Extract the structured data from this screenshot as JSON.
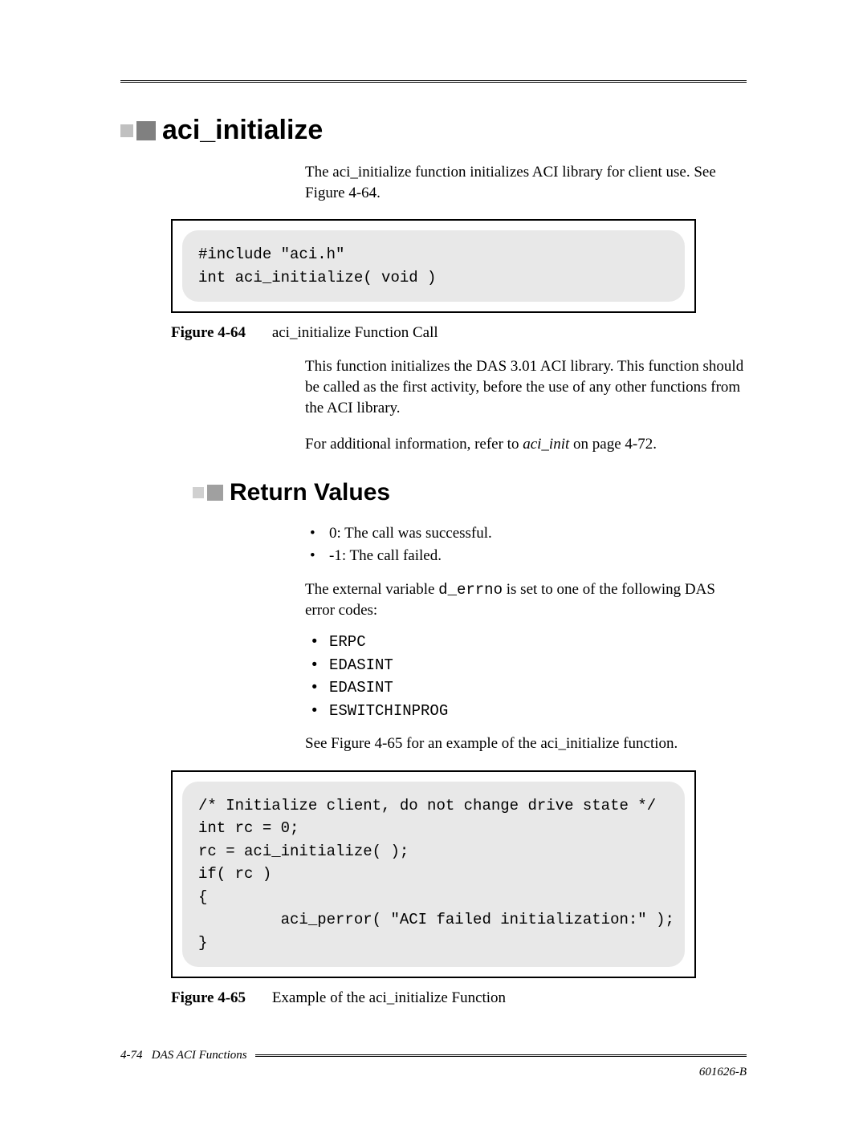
{
  "h1": "aci_initialize",
  "intro": "The aci_initialize function initializes ACI library for client use. See Figure 4-64.",
  "code1": "#include \"aci.h\"\nint aci_initialize( void )",
  "fig1": {
    "label": "Figure 4-64",
    "caption": "aci_initialize Function Call"
  },
  "para1": "This function initializes the DAS 3.01 ACI library. This function should be called as the first activity, before the use of any other functions from the ACI library.",
  "para2_pre": "For additional information, refer to ",
  "para2_em": "aci_init",
  "para2_post": "  on page 4-72.",
  "h2": "Return Values",
  "rv_bullets": [
    "0: The call was successful.",
    "-1: The call failed."
  ],
  "para3_pre": "The external variable ",
  "para3_code": "d_errno",
  "para3_post": " is set to one of the following DAS error codes:",
  "err_bullets": [
    "ERPC",
    "EDASINT",
    "EDASINT",
    "ESWITCHINPROG"
  ],
  "para4": "See Figure 4-65 for an example of the aci_initialize function.",
  "code2": "/* Initialize client, do not change drive state */\nint rc = 0;\nrc = aci_initialize( );\nif( rc )\n{\n         aci_perror( \"ACI failed initialization:\" );\n}",
  "fig2": {
    "label": "Figure 4-65",
    "caption": "Example of the aci_initialize Function"
  },
  "footer": {
    "left_page": "4-74",
    "left_title": "DAS ACI Functions",
    "right": "601626-B"
  },
  "colors": {
    "marker_light": "#c0c0c0",
    "marker_dark": "#808080",
    "code_bg": "#e8e8e8",
    "text": "#000000",
    "page_bg": "#ffffff"
  }
}
